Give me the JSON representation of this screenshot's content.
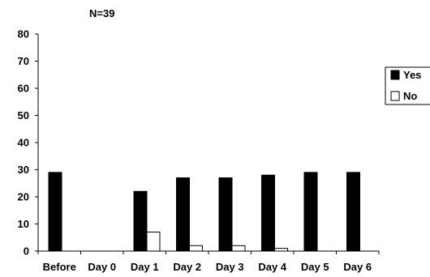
{
  "chart_data": {
    "type": "bar",
    "title": "N=39",
    "xlabel": "",
    "ylabel": "",
    "categories": [
      "Before",
      "Day 0",
      "Day 1",
      "Day 2",
      "Day 3",
      "Day 4",
      "Day 5",
      "Day 6"
    ],
    "series": [
      {
        "name": "Yes",
        "color": "#000000",
        "values": [
          29,
          0,
          22,
          27,
          27,
          28,
          29,
          29
        ]
      },
      {
        "name": "No",
        "color": "#ffffff",
        "values": [
          0,
          0,
          7,
          2,
          2,
          1,
          0,
          0
        ]
      }
    ],
    "ylim": [
      0,
      80
    ],
    "yticks": [
      "0",
      "10",
      "20",
      "30",
      "40",
      "50",
      "60",
      "70",
      "80"
    ],
    "grid": false,
    "legend": "right"
  }
}
